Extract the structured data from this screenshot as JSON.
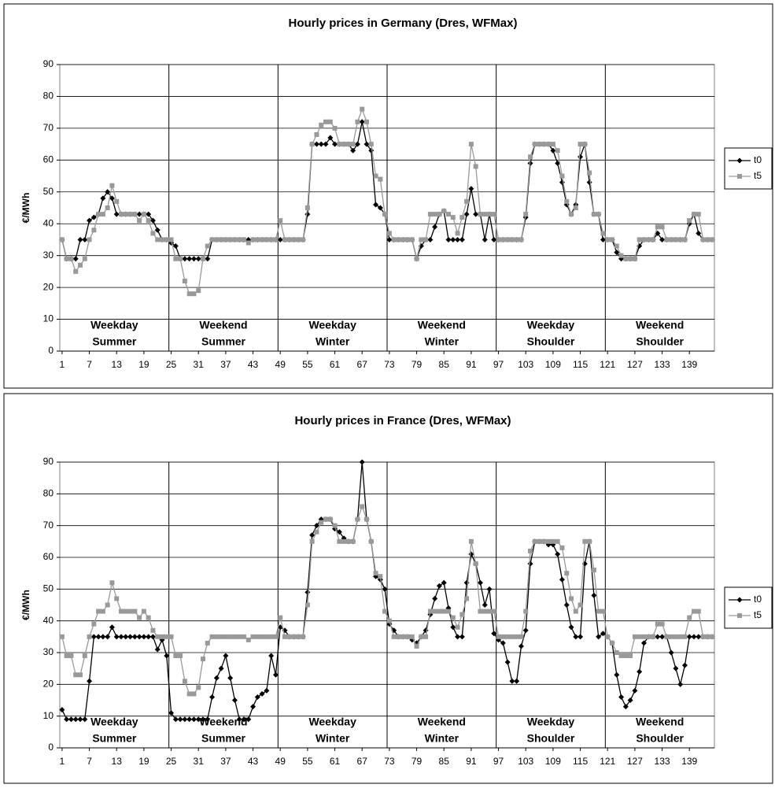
{
  "chart_data": [
    {
      "type": "line",
      "title": "Hourly prices in Germany (Dres, WFMax)",
      "y_label": "€/MWh",
      "x": [
        1,
        2,
        3,
        4,
        5,
        6,
        7,
        8,
        9,
        10,
        11,
        12,
        13,
        14,
        15,
        16,
        17,
        18,
        19,
        20,
        21,
        22,
        23,
        24,
        25,
        26,
        27,
        28,
        29,
        30,
        31,
        32,
        33,
        34,
        35,
        36,
        37,
        38,
        39,
        40,
        41,
        42,
        43,
        44,
        45,
        46,
        47,
        48,
        49,
        50,
        51,
        52,
        53,
        54,
        55,
        56,
        57,
        58,
        59,
        60,
        61,
        62,
        63,
        64,
        65,
        66,
        67,
        68,
        69,
        70,
        71,
        72,
        73,
        74,
        75,
        76,
        77,
        78,
        79,
        80,
        81,
        82,
        83,
        84,
        85,
        86,
        87,
        88,
        89,
        90,
        91,
        92,
        93,
        94,
        95,
        96,
        97,
        98,
        99,
        100,
        101,
        102,
        103,
        104,
        105,
        106,
        107,
        108,
        109,
        110,
        111,
        112,
        113,
        114,
        115,
        116,
        117,
        118,
        119,
        120,
        121,
        122,
        123,
        124,
        125,
        126,
        127,
        128,
        129,
        130,
        131,
        132,
        133,
        134,
        135,
        136,
        137,
        138,
        139,
        140,
        141,
        142,
        143,
        144
      ],
      "xlim": [
        0.5,
        144.5
      ],
      "xticks": [
        1,
        7,
        13,
        19,
        25,
        31,
        37,
        43,
        49,
        55,
        61,
        67,
        73,
        79,
        85,
        91,
        97,
        103,
        109,
        115,
        121,
        127,
        133,
        139
      ],
      "ylim": [
        0,
        90
      ],
      "yticks": [
        0,
        10,
        20,
        30,
        40,
        50,
        60,
        70,
        80,
        90
      ],
      "grid": true,
      "legend": "right",
      "segments": [
        [
          "Weekday",
          "Summer"
        ],
        [
          "Weekend",
          "Summer"
        ],
        [
          "Weekday",
          "Winter"
        ],
        [
          "Weekend",
          "Winter"
        ],
        [
          "Weekday",
          "Shoulder"
        ],
        [
          "Weekend",
          "Shoulder"
        ]
      ],
      "series": [
        {
          "name": "t0",
          "color": "#000000",
          "marker": "diamond",
          "values": [
            35,
            29,
            29,
            29,
            35,
            35,
            41,
            42,
            43,
            48,
            50,
            48,
            43,
            43,
            43,
            43,
            43,
            43,
            43,
            43,
            41,
            38,
            35,
            35,
            34,
            33,
            29,
            29,
            29,
            29,
            29,
            29,
            29,
            35,
            35,
            35,
            35,
            35,
            35,
            35,
            35,
            35,
            35,
            35,
            35,
            35,
            35,
            35,
            35,
            35,
            35,
            35,
            35,
            35,
            43,
            65,
            65,
            65,
            65,
            67,
            65,
            65,
            65,
            65,
            63,
            65,
            72,
            65,
            63,
            46,
            45,
            43,
            35,
            35,
            35,
            35,
            35,
            35,
            29,
            33,
            35,
            35,
            39,
            43,
            44,
            35,
            35,
            35,
            35,
            43,
            51,
            43,
            43,
            35,
            43,
            35,
            35,
            35,
            35,
            35,
            35,
            35,
            42,
            59,
            65,
            65,
            65,
            65,
            63,
            59,
            53,
            46,
            43,
            46,
            61,
            65,
            53,
            43,
            43,
            35,
            35,
            35,
            31,
            29,
            29,
            29,
            29,
            33,
            35,
            35,
            35,
            37,
            35,
            35,
            35,
            35,
            35,
            35,
            40,
            43,
            37,
            35,
            35,
            35
          ]
        },
        {
          "name": "t5",
          "color": "#999999",
          "marker": "square",
          "values": [
            35,
            29,
            29,
            25,
            27,
            29,
            35,
            38,
            43,
            43,
            45,
            52,
            47,
            43,
            43,
            43,
            43,
            41,
            43,
            41,
            37,
            35,
            35,
            35,
            35,
            29,
            29,
            22,
            18,
            18,
            19,
            29,
            33,
            35,
            35,
            35,
            35,
            35,
            35,
            35,
            35,
            34,
            35,
            35,
            35,
            35,
            35,
            35,
            41,
            35,
            35,
            35,
            35,
            35,
            45,
            65,
            68,
            71,
            72,
            72,
            70,
            65,
            65,
            65,
            65,
            72,
            76,
            72,
            65,
            55,
            54,
            43,
            37,
            35,
            35,
            35,
            35,
            35,
            29,
            35,
            35,
            43,
            43,
            43,
            44,
            43,
            42,
            37,
            42,
            47,
            65,
            58,
            43,
            43,
            43,
            43,
            35,
            35,
            35,
            35,
            35,
            35,
            43,
            61,
            65,
            65,
            65,
            65,
            65,
            63,
            55,
            47,
            43,
            45,
            65,
            65,
            56,
            43,
            43,
            37,
            35,
            35,
            33,
            30,
            29,
            29,
            29,
            35,
            35,
            35,
            35,
            39,
            39,
            35,
            35,
            35,
            35,
            35,
            41,
            43,
            43,
            35,
            35,
            35
          ]
        }
      ]
    },
    {
      "type": "line",
      "title": "Hourly prices in France (Dres, WFMax)",
      "y_label": "€/MWh",
      "x": [
        1,
        2,
        3,
        4,
        5,
        6,
        7,
        8,
        9,
        10,
        11,
        12,
        13,
        14,
        15,
        16,
        17,
        18,
        19,
        20,
        21,
        22,
        23,
        24,
        25,
        26,
        27,
        28,
        29,
        30,
        31,
        32,
        33,
        34,
        35,
        36,
        37,
        38,
        39,
        40,
        41,
        42,
        43,
        44,
        45,
        46,
        47,
        48,
        49,
        50,
        51,
        52,
        53,
        54,
        55,
        56,
        57,
        58,
        59,
        60,
        61,
        62,
        63,
        64,
        65,
        66,
        67,
        68,
        69,
        70,
        71,
        72,
        73,
        74,
        75,
        76,
        77,
        78,
        79,
        80,
        81,
        82,
        83,
        84,
        85,
        86,
        87,
        88,
        89,
        90,
        91,
        92,
        93,
        94,
        95,
        96,
        97,
        98,
        99,
        100,
        101,
        102,
        103,
        104,
        105,
        106,
        107,
        108,
        109,
        110,
        111,
        112,
        113,
        114,
        115,
        116,
        117,
        118,
        119,
        120,
        121,
        122,
        123,
        124,
        125,
        126,
        127,
        128,
        129,
        130,
        131,
        132,
        133,
        134,
        135,
        136,
        137,
        138,
        139,
        140,
        141,
        142,
        143,
        144
      ],
      "xlim": [
        0.5,
        144.5
      ],
      "xticks": [
        1,
        7,
        13,
        19,
        25,
        31,
        37,
        43,
        49,
        55,
        61,
        67,
        73,
        79,
        85,
        91,
        97,
        103,
        109,
        115,
        121,
        127,
        133,
        139
      ],
      "ylim": [
        0,
        90
      ],
      "yticks": [
        0,
        10,
        20,
        30,
        40,
        50,
        60,
        70,
        80,
        90
      ],
      "grid": true,
      "legend": "right",
      "segments": [
        [
          "Weekday",
          "Summer"
        ],
        [
          "Weekend",
          "Summer"
        ],
        [
          "Weekday",
          "Winter"
        ],
        [
          "Weekend",
          "Winter"
        ],
        [
          "Weekday",
          "Shoulder"
        ],
        [
          "Weekend",
          "Shoulder"
        ]
      ],
      "series": [
        {
          "name": "t0",
          "color": "#000000",
          "marker": "diamond",
          "values": [
            12,
            9,
            9,
            9,
            9,
            9,
            21,
            35,
            35,
            35,
            35,
            38,
            35,
            35,
            35,
            35,
            35,
            35,
            35,
            35,
            35,
            31,
            34,
            29,
            11,
            9,
            9,
            9,
            9,
            9,
            9,
            9,
            9,
            16,
            22,
            25,
            29,
            22,
            15,
            9,
            9,
            9,
            13,
            16,
            17,
            18,
            29,
            23,
            38,
            37,
            35,
            35,
            35,
            35,
            49,
            67,
            70,
            72,
            72,
            72,
            69,
            68,
            66,
            65,
            65,
            72,
            90,
            72,
            65,
            54,
            53,
            50,
            39,
            37,
            35,
            35,
            35,
            34,
            33,
            35,
            37,
            42,
            47,
            51,
            52,
            44,
            38,
            35,
            35,
            52,
            61,
            58,
            52,
            45,
            50,
            36,
            34,
            33,
            27,
            21,
            21,
            32,
            37,
            58,
            65,
            65,
            65,
            64,
            64,
            61,
            53,
            45,
            38,
            35,
            35,
            58,
            65,
            48,
            35,
            36,
            35,
            33,
            23,
            16,
            13,
            15,
            18,
            24,
            33,
            35,
            35,
            35,
            35,
            35,
            30,
            25,
            20,
            26,
            35,
            35,
            35,
            35,
            35,
            35
          ]
        },
        {
          "name": "t5",
          "color": "#999999",
          "marker": "square",
          "values": [
            35,
            29,
            29,
            23,
            23,
            29,
            35,
            39,
            43,
            43,
            45,
            52,
            47,
            43,
            43,
            43,
            43,
            41,
            43,
            41,
            37,
            35,
            35,
            35,
            35,
            29,
            29,
            21,
            17,
            17,
            19,
            28,
            33,
            35,
            35,
            35,
            35,
            35,
            35,
            35,
            35,
            34,
            35,
            35,
            35,
            35,
            35,
            35,
            41,
            35,
            35,
            35,
            35,
            35,
            45,
            65,
            68,
            71,
            72,
            72,
            70,
            65,
            65,
            65,
            65,
            72,
            76,
            72,
            65,
            55,
            54,
            43,
            40,
            35,
            35,
            35,
            35,
            35,
            32,
            35,
            35,
            43,
            43,
            43,
            43,
            43,
            41,
            38,
            42,
            47,
            65,
            58,
            43,
            43,
            43,
            43,
            35,
            35,
            35,
            35,
            35,
            35,
            43,
            62,
            65,
            65,
            65,
            65,
            65,
            65,
            63,
            55,
            47,
            43,
            45,
            65,
            65,
            56,
            43,
            43,
            35,
            33,
            30,
            29,
            29,
            29,
            35,
            35,
            35,
            35,
            35,
            39,
            39,
            35,
            35,
            35,
            35,
            35,
            41,
            43,
            43,
            35,
            35,
            35
          ]
        }
      ]
    }
  ]
}
